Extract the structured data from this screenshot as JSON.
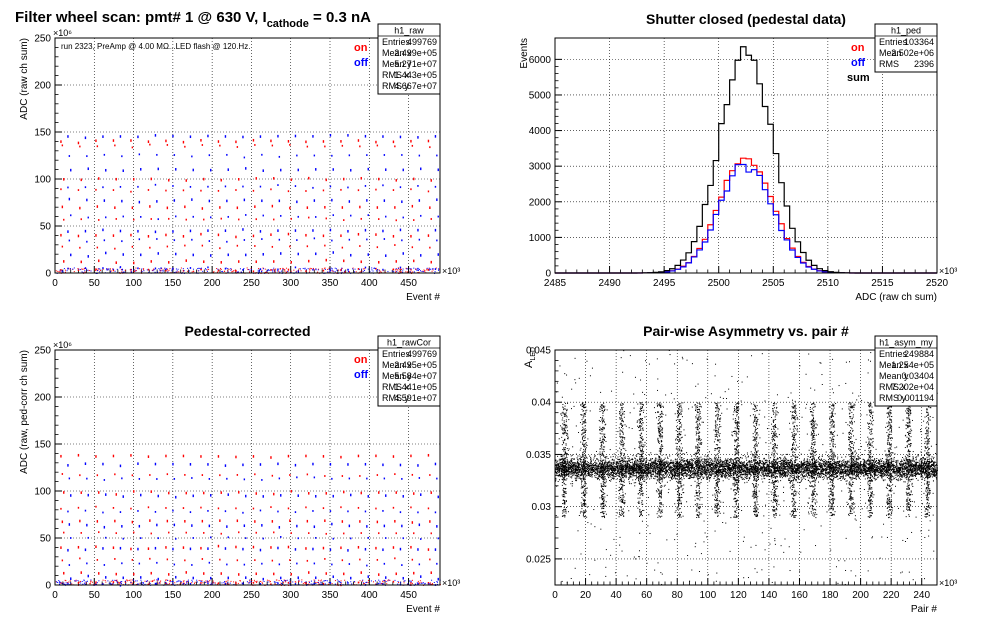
{
  "canvas_title": {
    "main": "Filter wheel scan: pmt#   1 @   630 V, I",
    "subscript": "cathode",
    "tail": " = 0.3 nA"
  },
  "legend_on": "on",
  "legend_off": "off",
  "legend_sum": "sum",
  "colors": {
    "on": "#ff0000",
    "off": "#0000ff",
    "sum": "#000000",
    "grid": "#000000"
  },
  "chart_data": [
    {
      "id": "raw",
      "type": "scatter",
      "title": "",
      "run_note": "run 2323, PreAmp @ 4.00 MΩ...LED flash @  120.Hz.",
      "xlabel": "Event #",
      "ylabel": "ADC (raw ch sum)",
      "xlim": [
        0,
        490
      ],
      "ylim": [
        0,
        250
      ],
      "x_exponent": "×10³",
      "y_exponent": "×10⁶",
      "x_ticks": [
        0,
        50,
        100,
        150,
        200,
        250,
        300,
        350,
        400,
        450
      ],
      "y_ticks": [
        0,
        50,
        100,
        150,
        200,
        250
      ],
      "grid": true,
      "stats": {
        "name": "h1_raw",
        "rows": [
          [
            "Entries",
            "499769"
          ],
          [
            "Mean x",
            "2.499e+05"
          ],
          [
            "Mean y",
            "5.271e+07"
          ],
          [
            "RMS x",
            "1.443e+05"
          ],
          [
            "RMS y",
            "4.667e+07"
          ]
        ]
      },
      "series": [
        {
          "name": "on",
          "levels": [
            140,
            135,
            100,
            88,
            70,
            57,
            40,
            28,
            12,
            3
          ]
        },
        {
          "name": "off",
          "levels": [
            145,
            125,
            110,
            92,
            77,
            60,
            45,
            35,
            20,
            5
          ]
        }
      ]
    },
    {
      "id": "ped",
      "type": "line",
      "title": "Shutter closed (pedestal data)",
      "xlabel": "ADC (raw ch sum)",
      "ylabel": "Events",
      "xlim": [
        2485,
        2520
      ],
      "ylim": [
        0,
        6600
      ],
      "x_exponent": "×10³",
      "x_ticks": [
        2485,
        2490,
        2495,
        2500,
        2505,
        2510,
        2515,
        2520
      ],
      "y_ticks": [
        0,
        1000,
        2000,
        3000,
        4000,
        5000,
        6000
      ],
      "grid": true,
      "stats": {
        "name": "h1_ped",
        "rows": [
          [
            "Entries",
            "103364"
          ],
          [
            "Mean",
            "2.502e+06"
          ],
          [
            "RMS",
            "2396"
          ]
        ]
      },
      "peak_x": 2502.5,
      "sigma": 2.4,
      "series": [
        {
          "name": "on",
          "peak": 3300
        },
        {
          "name": "off",
          "peak": 3100
        },
        {
          "name": "sum",
          "peak": 6300
        }
      ]
    },
    {
      "id": "rawCor",
      "type": "scatter",
      "title": "Pedestal-corrected",
      "xlabel": "Event #",
      "ylabel": "ADC (raw, ped-corr ch sum)",
      "xlim": [
        0,
        490
      ],
      "ylim": [
        0,
        250
      ],
      "x_exponent": "×10³",
      "y_exponent": "×10⁶",
      "x_ticks": [
        0,
        50,
        100,
        150,
        200,
        250,
        300,
        350,
        400,
        450
      ],
      "y_ticks": [
        0,
        50,
        100,
        150,
        200,
        250
      ],
      "grid": true,
      "stats": {
        "name": "h1_rawCor",
        "rows": [
          [
            "Entries",
            "499769"
          ],
          [
            "Mean x",
            "2.495e+05"
          ],
          [
            "Mean y",
            "5.584e+07"
          ],
          [
            "RMS x",
            "1.441e+05"
          ],
          [
            "RMS y",
            "4.591e+07"
          ]
        ]
      },
      "series": [
        {
          "name": "on",
          "levels": [
            137,
            117,
            98,
            82,
            68,
            55,
            40,
            27,
            12,
            2
          ]
        },
        {
          "name": "off",
          "levels": [
            128,
            113,
            95,
            78,
            63,
            50,
            38,
            22,
            8,
            1
          ]
        }
      ]
    },
    {
      "id": "asym",
      "type": "scatter",
      "title": "Pair-wise Asymmetry vs. pair #",
      "xlabel": "Pair #",
      "ylabel": "A_LED",
      "xlim": [
        0,
        250
      ],
      "ylim": [
        0.0225,
        0.045
      ],
      "x_exponent": "×10³",
      "x_ticks": [
        0,
        20,
        40,
        60,
        80,
        100,
        120,
        140,
        160,
        180,
        200,
        220,
        240
      ],
      "y_ticks": [
        0.025,
        0.03,
        0.035,
        0.04,
        0.045
      ],
      "y_tick_labels": [
        "0.025",
        "0.03",
        "0.035",
        "0.04",
        "0.045"
      ],
      "grid": true,
      "stats": {
        "name": "h1_asym_my",
        "rows": [
          [
            "Entries",
            "249884"
          ],
          [
            "Mean x",
            "1.254e+05"
          ],
          [
            "Mean y",
            "0.03404"
          ],
          [
            "RMS x",
            "7.202e+04"
          ],
          [
            "RMS y",
            "0.001194"
          ]
        ]
      },
      "band_center": 0.0337,
      "band_halfwidth": 0.0008,
      "spike_spacing": 12.5,
      "spike_range": [
        0.029,
        0.04
      ]
    }
  ]
}
